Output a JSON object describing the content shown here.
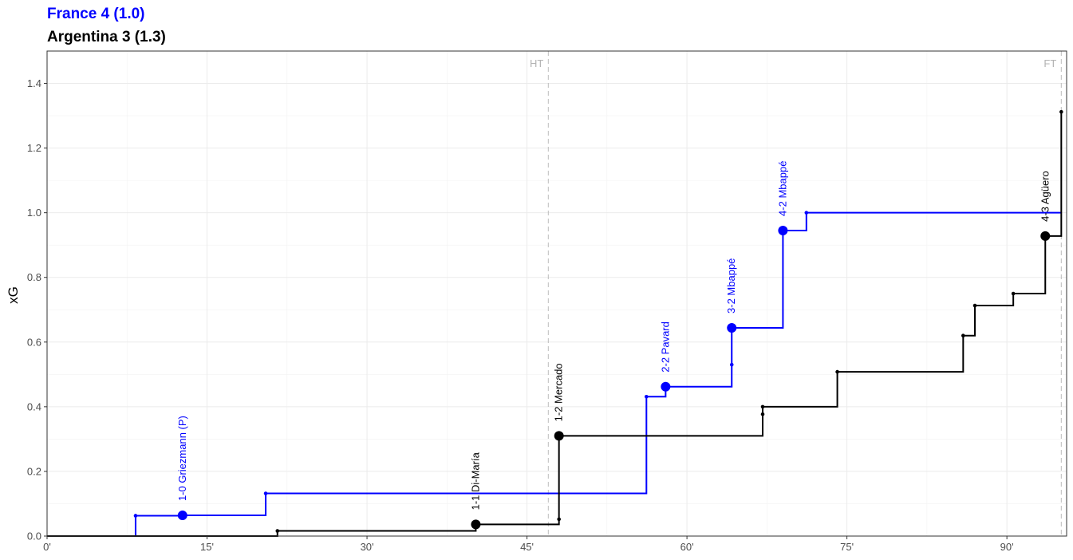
{
  "chart_data": {
    "type": "line",
    "subtype": "step",
    "titles": [
      {
        "text": "France 4 (1.0)",
        "color": "#0000ff"
      },
      {
        "text": "Argentina 3 (1.3)",
        "color": "#000000"
      }
    ],
    "ylabel": "xG",
    "xlabel": "",
    "xlim": [
      0,
      95.6
    ],
    "ylim": [
      0,
      1.5
    ],
    "x_ticks": [
      0,
      15,
      30,
      45,
      60,
      75,
      90
    ],
    "x_tick_labels": [
      "0'",
      "15'",
      "30'",
      "45'",
      "60'",
      "75'",
      "90'"
    ],
    "y_ticks": [
      0.0,
      0.2,
      0.4,
      0.6,
      0.8,
      1.0,
      1.2,
      1.4
    ],
    "y_tick_labels": [
      "0.0",
      "0.2",
      "0.4",
      "0.6",
      "0.8",
      "1.0",
      "1.2",
      "1.4"
    ],
    "grid": true,
    "reference_lines": [
      {
        "x": 47,
        "label": "HT"
      },
      {
        "x": 95.1,
        "label": "FT"
      }
    ],
    "series": [
      {
        "name": "France",
        "color": "#0000ff",
        "end_x": 95.1,
        "shots": [
          {
            "x": 8.3,
            "y": 0.063,
            "goal": false
          },
          {
            "x": 12.7,
            "y": 0.064,
            "goal": true,
            "label": "1-0 Griezmann (P)"
          },
          {
            "x": 20.5,
            "y": 0.132,
            "goal": false
          },
          {
            "x": 56.2,
            "y": 0.431,
            "goal": false
          },
          {
            "x": 58.0,
            "y": 0.462,
            "goal": true,
            "label": "2-2 Pavard"
          },
          {
            "x": 64.2,
            "y": 0.53,
            "goal": false
          },
          {
            "x": 64.2,
            "y": 0.644,
            "goal": true,
            "label": "3-2 Mbappé"
          },
          {
            "x": 69.0,
            "y": 0.945,
            "goal": true,
            "label": "4-2 Mbappé"
          },
          {
            "x": 71.2,
            "y": 1.0,
            "goal": false
          }
        ]
      },
      {
        "name": "Argentina",
        "color": "#000000",
        "end_x": 95.1,
        "shots": [
          {
            "x": 21.6,
            "y": 0.016,
            "goal": false
          },
          {
            "x": 40.2,
            "y": 0.036,
            "goal": true,
            "label": "1-1 Di-María"
          },
          {
            "x": 48.0,
            "y": 0.052,
            "goal": false
          },
          {
            "x": 48.0,
            "y": 0.31,
            "goal": true,
            "label": "1-2 Mercado"
          },
          {
            "x": 67.1,
            "y": 0.377,
            "goal": false
          },
          {
            "x": 67.1,
            "y": 0.4,
            "goal": false
          },
          {
            "x": 74.1,
            "y": 0.508,
            "goal": false
          },
          {
            "x": 85.9,
            "y": 0.62,
            "goal": false
          },
          {
            "x": 87.0,
            "y": 0.713,
            "goal": false
          },
          {
            "x": 90.6,
            "y": 0.75,
            "goal": false
          },
          {
            "x": 93.6,
            "y": 0.928,
            "goal": true,
            "label": "4-3 Agüero"
          },
          {
            "x": 95.1,
            "y": 1.312,
            "goal": false
          }
        ]
      }
    ]
  }
}
